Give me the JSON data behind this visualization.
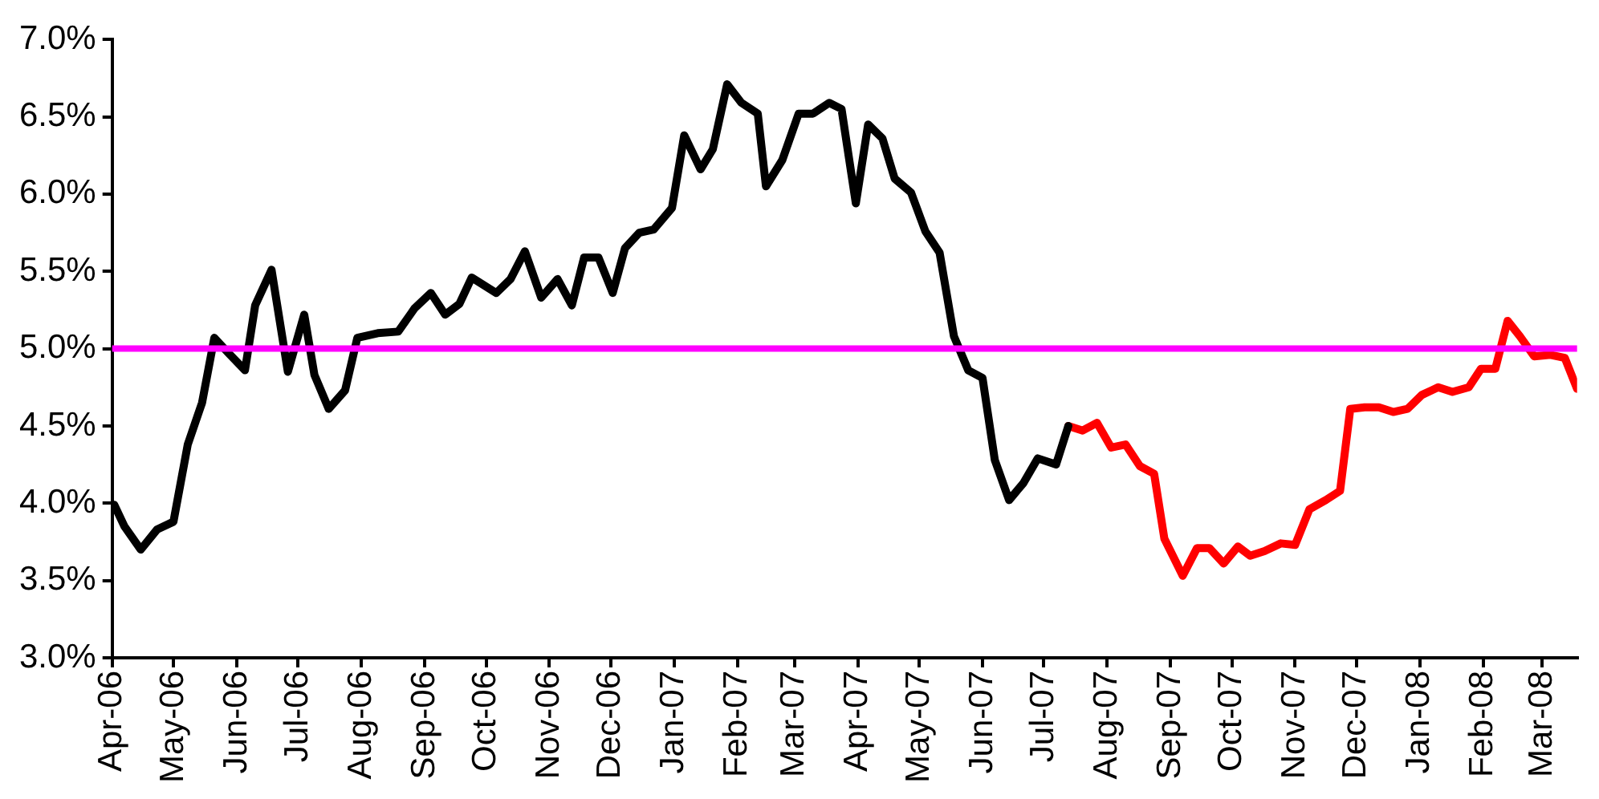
{
  "chart_data": {
    "type": "line",
    "x": [
      "2006-04-02",
      "2006-04-07",
      "2006-04-15",
      "2006-04-23",
      "2006-05-01",
      "2006-05-08",
      "2006-05-15",
      "2006-05-21",
      "2006-05-28",
      "2006-06-05",
      "2006-06-10",
      "2006-06-18",
      "2006-06-26",
      "2006-07-04",
      "2006-07-09",
      "2006-07-16",
      "2006-07-24",
      "2006-07-30",
      "2006-08-09",
      "2006-08-19",
      "2006-08-27",
      "2006-09-04",
      "2006-09-11",
      "2006-09-18",
      "2006-09-24",
      "2006-10-06",
      "2006-10-13",
      "2006-10-20",
      "2006-10-28",
      "2006-11-05",
      "2006-11-12",
      "2006-11-18",
      "2006-11-25",
      "2006-12-02",
      "2006-12-08",
      "2006-12-15",
      "2006-12-22",
      "2006-12-31",
      "2007-01-06",
      "2007-01-14",
      "2007-01-20",
      "2007-01-27",
      "2007-02-03",
      "2007-02-11",
      "2007-02-15",
      "2007-02-23",
      "2007-03-03",
      "2007-03-10",
      "2007-03-18",
      "2007-03-24",
      "2007-03-31",
      "2007-04-06",
      "2007-04-13",
      "2007-04-19",
      "2007-04-27",
      "2007-05-04",
      "2007-05-11",
      "2007-05-18",
      "2007-05-25",
      "2007-06-01",
      "2007-06-07",
      "2007-06-14",
      "2007-06-21",
      "2007-06-28",
      "2007-07-07",
      "2007-07-13"
    ],
    "series": [
      {
        "color": "#000000",
        "values": [
          3.99,
          3.85,
          3.7,
          3.83,
          3.88,
          4.38,
          4.65,
          5.07,
          4.97,
          4.86,
          5.28,
          5.51,
          4.85,
          5.22,
          4.83,
          4.61,
          4.73,
          5.07,
          5.1,
          5.11,
          5.26,
          5.36,
          5.22,
          5.29,
          5.46,
          5.36,
          5.45,
          5.63,
          5.33,
          5.45,
          5.28,
          5.59,
          5.59,
          5.36,
          5.65,
          5.75,
          5.77,
          5.91,
          6.38,
          6.16,
          6.29,
          6.71,
          6.59,
          6.52,
          6.05,
          6.22,
          6.52,
          6.52,
          6.59,
          6.55,
          5.94,
          6.45,
          6.36,
          6.1,
          6.01,
          5.76,
          5.62,
          5.08,
          4.86,
          4.81,
          4.28,
          4.02,
          4.13,
          4.29,
          4.25,
          4.5
        ]
      },
      {
        "color": "#ff0000",
        "x": [
          "2007-07-13",
          "2007-07-20",
          "2007-07-27",
          "2007-08-03",
          "2007-08-10",
          "2007-08-17",
          "2007-08-24",
          "2007-08-29",
          "2007-09-07",
          "2007-09-14",
          "2007-09-20",
          "2007-09-27",
          "2007-10-04",
          "2007-10-10",
          "2007-10-17",
          "2007-10-25",
          "2007-11-01",
          "2007-11-08",
          "2007-11-16",
          "2007-11-23",
          "2007-11-28",
          "2007-12-05",
          "2007-12-12",
          "2007-12-19",
          "2007-12-26",
          "2008-01-02",
          "2008-01-10",
          "2008-01-17",
          "2008-01-25",
          "2008-01-31",
          "2008-02-07",
          "2008-02-13",
          "2008-02-19",
          "2008-02-26",
          "2008-03-05",
          "2008-03-12",
          "2008-03-18"
        ],
        "values": [
          4.5,
          4.47,
          4.52,
          4.36,
          4.38,
          4.24,
          4.19,
          3.77,
          3.53,
          3.71,
          3.71,
          3.61,
          3.72,
          3.66,
          3.69,
          3.74,
          3.73,
          3.96,
          4.02,
          4.08,
          4.61,
          4.62,
          4.62,
          4.59,
          4.61,
          4.7,
          4.75,
          4.72,
          4.75,
          4.87,
          4.87,
          5.18,
          5.08,
          4.95,
          4.96,
          4.94,
          4.74
        ]
      }
    ],
    "xlim": [
      "2006-04-01",
      "2008-03-18"
    ],
    "xticks": [
      {
        "value": "2006-04-01",
        "label": "Apr-06"
      },
      {
        "value": "2006-05-01",
        "label": "May-06"
      },
      {
        "value": "2006-06-01",
        "label": "Jun-06"
      },
      {
        "value": "2006-07-01",
        "label": "Jul-06"
      },
      {
        "value": "2006-08-01",
        "label": "Aug-06"
      },
      {
        "value": "2006-09-01",
        "label": "Sep-06"
      },
      {
        "value": "2006-10-01",
        "label": "Oct-06"
      },
      {
        "value": "2006-11-01",
        "label": "Nov-06"
      },
      {
        "value": "2006-12-01",
        "label": "Dec-06"
      },
      {
        "value": "2007-01-01",
        "label": "Jan-07"
      },
      {
        "value": "2007-02-01",
        "label": "Feb-07"
      },
      {
        "value": "2007-03-01",
        "label": "Mar-07"
      },
      {
        "value": "2007-04-01",
        "label": "Apr-07"
      },
      {
        "value": "2007-05-01",
        "label": "May-07"
      },
      {
        "value": "2007-06-01",
        "label": "Jun-07"
      },
      {
        "value": "2007-07-01",
        "label": "Jul-07"
      },
      {
        "value": "2007-08-01",
        "label": "Aug-07"
      },
      {
        "value": "2007-09-01",
        "label": "Sep-07"
      },
      {
        "value": "2007-10-01",
        "label": "Oct-07"
      },
      {
        "value": "2007-11-01",
        "label": "Nov-07"
      },
      {
        "value": "2007-12-01",
        "label": "Dec-07"
      },
      {
        "value": "2008-01-01",
        "label": "Jan-08"
      },
      {
        "value": "2008-02-01",
        "label": "Feb-08"
      },
      {
        "value": "2008-03-01",
        "label": "Mar-08"
      }
    ],
    "ylim": [
      3.0,
      7.0
    ],
    "yticks": [
      {
        "value": 3.0,
        "label": "3.0%"
      },
      {
        "value": 3.5,
        "label": "3.5%"
      },
      {
        "value": 4.0,
        "label": "4.0%"
      },
      {
        "value": 4.5,
        "label": "4.5%"
      },
      {
        "value": 5.0,
        "label": "5.0%"
      },
      {
        "value": 5.5,
        "label": "5.5%"
      },
      {
        "value": 6.0,
        "label": "6.0%"
      },
      {
        "value": 6.5,
        "label": "6.5%"
      },
      {
        "value": 7.0,
        "label": "7.0%"
      }
    ],
    "ref_lines": [
      {
        "axis": "y",
        "value": 5.0,
        "color": "#ff00ff"
      }
    ],
    "grid": false,
    "legend": false,
    "marker": "none",
    "line_style": "solid"
  }
}
